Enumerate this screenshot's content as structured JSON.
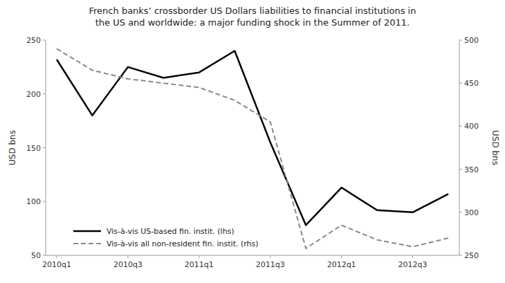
{
  "chart_data": {
    "type": "line",
    "title": "French banks’ crossborder US Dollars liabilities to financial institutions in\nthe US and worldwide: a major funding shock in the Summer of 2011.",
    "categories": [
      "2010q1",
      null,
      "2010q3",
      null,
      "2011q1",
      null,
      "2011q3",
      null,
      "2012q1",
      null,
      "2012q3",
      null
    ],
    "series": [
      {
        "name": "Vis-à-vis US-based fin. instit. (lhs)",
        "color": "#000000",
        "line_style": "solid",
        "values": [
          232,
          180,
          225,
          215,
          220,
          240,
          155,
          78,
          113,
          92,
          90,
          107
        ]
      },
      {
        "name": "Vis-à-vis all non-resident fin. instit. (rhs)",
        "color": "#888888",
        "line_style": "dashed",
        "axis": "y2",
        "values": [
          490,
          465,
          455,
          450,
          445,
          430,
          405,
          258,
          285,
          268,
          260,
          270
        ]
      }
    ],
    "ylabel": "USD bns",
    "y2label": "USD bns",
    "ylim": [
      50,
      250
    ],
    "yticks": [
      50,
      100,
      150,
      200,
      250
    ],
    "y2lim": [
      250,
      500
    ],
    "y2ticks": [
      250,
      300,
      350,
      400,
      450,
      500
    ],
    "grid": false,
    "legend": "lower left"
  }
}
